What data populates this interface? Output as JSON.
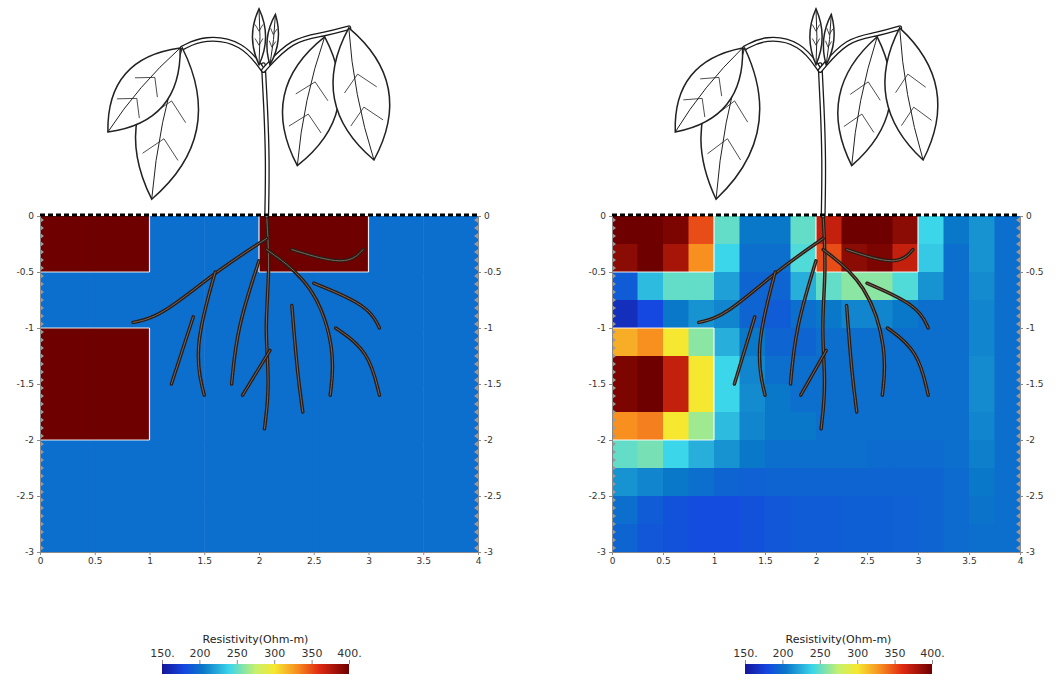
{
  "chart_data": [
    {
      "type": "heatmap",
      "x": [
        0.25,
        0.75,
        1.25,
        1.75,
        2.25,
        2.75,
        3.25,
        3.75
      ],
      "y": [
        -0.25,
        -0.75,
        -1.25,
        -1.75,
        -2.25,
        -2.75
      ],
      "values": [
        [
          400,
          400,
          200,
          200,
          400,
          400,
          200,
          200
        ],
        [
          200,
          200,
          200,
          200,
          200,
          200,
          200,
          200
        ],
        [
          400,
          400,
          200,
          200,
          200,
          200,
          200,
          200
        ],
        [
          400,
          400,
          200,
          200,
          200,
          200,
          200,
          200
        ],
        [
          200,
          200,
          200,
          200,
          200,
          200,
          200,
          200
        ],
        [
          200,
          200,
          200,
          200,
          200,
          200,
          200,
          200
        ]
      ],
      "xlim": [
        0,
        4
      ],
      "ylim": [
        -3,
        0
      ],
      "xticks": [
        0,
        0.5,
        1,
        1.5,
        2,
        2.5,
        3,
        3.5,
        4
      ],
      "yticks": [
        0,
        -0.5,
        -1,
        -1.5,
        -2,
        -2.5,
        -3
      ],
      "colorbar": {
        "title": "Resistivity(Ohm-m)",
        "range": [
          150,
          400
        ],
        "ticks": [
          {
            "value": 150,
            "label": "150."
          },
          {
            "value": 200,
            "label": "200"
          },
          {
            "value": 250,
            "label": "250"
          },
          {
            "value": 300,
            "label": "300"
          },
          {
            "value": 350,
            "label": "350"
          },
          {
            "value": 400,
            "label": "400."
          }
        ]
      }
    },
    {
      "type": "heatmap",
      "x": [
        0.125,
        0.375,
        0.625,
        0.875,
        1.125,
        1.375,
        1.625,
        1.875,
        2.125,
        2.375,
        2.625,
        2.875,
        3.125,
        3.375,
        3.625,
        3.875
      ],
      "y": [
        -0.125,
        -0.375,
        -0.625,
        -0.875,
        -1.125,
        -1.375,
        -1.625,
        -1.875,
        -2.125,
        -2.375,
        -2.625,
        -2.875
      ],
      "values": [
        [
          400,
          400,
          395,
          350,
          250,
          205,
          205,
          250,
          370,
          400,
          400,
          390,
          240,
          205,
          215,
          200
        ],
        [
          390,
          400,
          380,
          330,
          240,
          200,
          200,
          245,
          350,
          390,
          395,
          370,
          235,
          200,
          215,
          200
        ],
        [
          190,
          230,
          250,
          250,
          220,
          195,
          195,
          225,
          250,
          260,
          260,
          245,
          215,
          200,
          212,
          200
        ],
        [
          165,
          180,
          205,
          215,
          210,
          195,
          190,
          200,
          205,
          210,
          210,
          205,
          200,
          200,
          210,
          200
        ],
        [
          320,
          330,
          300,
          260,
          225,
          205,
          195,
          195,
          200,
          200,
          200,
          200,
          200,
          200,
          210,
          200
        ],
        [
          395,
          400,
          370,
          300,
          240,
          210,
          200,
          200,
          200,
          200,
          200,
          200,
          200,
          200,
          212,
          200
        ],
        [
          395,
          400,
          370,
          300,
          240,
          212,
          205,
          200,
          200,
          200,
          200,
          200,
          200,
          200,
          212,
          200
        ],
        [
          330,
          335,
          300,
          265,
          230,
          210,
          205,
          205,
          200,
          200,
          200,
          200,
          200,
          200,
          210,
          200
        ],
        [
          250,
          255,
          240,
          225,
          215,
          205,
          200,
          200,
          200,
          200,
          198,
          198,
          198,
          200,
          208,
          200
        ],
        [
          215,
          210,
          205,
          200,
          195,
          193,
          195,
          195,
          195,
          195,
          195,
          195,
          195,
          198,
          205,
          200
        ],
        [
          200,
          190,
          185,
          182,
          182,
          185,
          188,
          190,
          190,
          192,
          192,
          193,
          195,
          198,
          203,
          200
        ],
        [
          195,
          188,
          185,
          182,
          182,
          185,
          188,
          190,
          190,
          192,
          192,
          193,
          195,
          198,
          200,
          200
        ]
      ],
      "xlim": [
        0,
        4
      ],
      "ylim": [
        -3,
        0
      ],
      "xticks": [
        0,
        0.5,
        1,
        1.5,
        2,
        2.5,
        3,
        3.5,
        4
      ],
      "yticks": [
        0,
        -0.5,
        -1,
        -1.5,
        -2,
        -2.5,
        -3
      ],
      "colorbar": {
        "title": "Resistivity(Ohm-m)",
        "range": [
          150,
          400
        ],
        "ticks": [
          {
            "value": 150,
            "label": "150."
          },
          {
            "value": 200,
            "label": "200"
          },
          {
            "value": 250,
            "label": "250"
          },
          {
            "value": 300,
            "label": "300"
          },
          {
            "value": 350,
            "label": "350"
          },
          {
            "value": 400,
            "label": "400."
          }
        ]
      }
    }
  ]
}
